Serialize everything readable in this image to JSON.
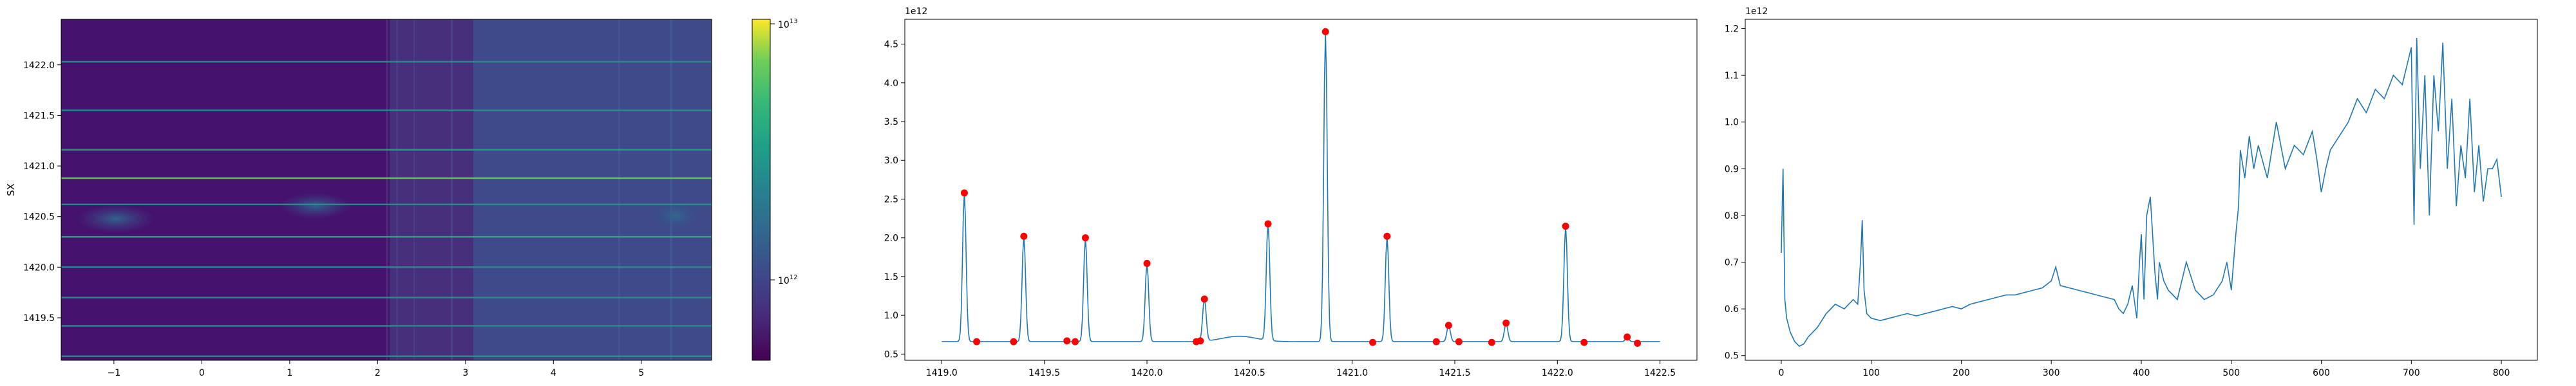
{
  "chart_data": [
    {
      "type": "heatmap",
      "title": "",
      "xlabel": "",
      "ylabel": "SX",
      "xlim": [
        -1.6,
        5.8
      ],
      "ylim": [
        1419.08,
        1422.45
      ],
      "xticks": [
        -1,
        0,
        1,
        2,
        3,
        4,
        5
      ],
      "xtick_labels": [
        "−1",
        "0",
        "1",
        "2",
        "3",
        "4",
        "5"
      ],
      "yticks": [
        1419.5,
        1420.0,
        1420.5,
        1421.0,
        1421.5,
        1422.0
      ],
      "ytick_labels": [
        "1419.5",
        "1420.0",
        "1420.5",
        "1421.0",
        "1421.5",
        "1422.0"
      ],
      "colormap": "viridis",
      "colorbar": {
        "scale": "log",
        "ticks": [
          1000000000000.0,
          10000000000000.0
        ],
        "tick_labels": [
          {
            "base": "10",
            "exp": "12"
          },
          {
            "base": "10",
            "exp": "13"
          }
        ]
      },
      "horizontal_lines": [
        {
          "y": 1422.03,
          "color": "#2a8f8c"
        },
        {
          "y": 1421.55,
          "color": "#2a8f8c"
        },
        {
          "y": 1421.16,
          "color": "#31988a"
        },
        {
          "y": 1420.88,
          "color": "#6ccd5a"
        },
        {
          "y": 1420.62,
          "color": "#2a8f8c"
        },
        {
          "y": 1420.3,
          "color": "#36a583"
        },
        {
          "y": 1420.0,
          "color": "#2a8f8c"
        },
        {
          "y": 1419.7,
          "color": "#2a8f8c"
        },
        {
          "y": 1419.42,
          "color": "#2a8f8c"
        },
        {
          "y": 1419.12,
          "color": "#2a8f8c"
        }
      ],
      "region_boundary_x": 3.08
    },
    {
      "type": "line",
      "title": "",
      "xlabel": "",
      "ylabel": "",
      "y_offset_label": "1e12",
      "xlim": [
        1418.82,
        1422.68
      ],
      "ylim": [
        0.42,
        4.82
      ],
      "xticks": [
        1419.0,
        1419.5,
        1420.0,
        1420.5,
        1421.0,
        1421.5,
        1422.0,
        1422.5
      ],
      "xtick_labels": [
        "1419.0",
        "1419.5",
        "1420.0",
        "1420.5",
        "1421.0",
        "1421.5",
        "1422.0",
        "1422.5"
      ],
      "yticks": [
        0.5,
        1.0,
        1.5,
        2.0,
        2.5,
        3.0,
        3.5,
        4.0,
        4.5
      ],
      "ytick_labels": [
        "0.5",
        "1.0",
        "1.5",
        "2.0",
        "2.5",
        "3.0",
        "3.5",
        "4.0",
        "4.5"
      ],
      "line_color": "#1f77b4",
      "marker_color": "#ff0000",
      "baseline": 0.66,
      "peaks": [
        {
          "x": 1419.11,
          "y": 2.58
        },
        {
          "x": 1419.4,
          "y": 2.02
        },
        {
          "x": 1419.7,
          "y": 2.0
        },
        {
          "x": 1420.0,
          "y": 1.67
        },
        {
          "x": 1420.28,
          "y": 1.21
        },
        {
          "x": 1420.59,
          "y": 2.18
        },
        {
          "x": 1420.87,
          "y": 4.66
        },
        {
          "x": 1421.17,
          "y": 2.02
        },
        {
          "x": 1421.47,
          "y": 0.87
        },
        {
          "x": 1421.75,
          "y": 0.9
        },
        {
          "x": 1422.04,
          "y": 2.15
        },
        {
          "x": 1422.34,
          "y": 0.72
        }
      ],
      "minor_markers": [
        {
          "x": 1419.17,
          "y": 0.66
        },
        {
          "x": 1419.35,
          "y": 0.66
        },
        {
          "x": 1419.61,
          "y": 0.67
        },
        {
          "x": 1419.65,
          "y": 0.66
        },
        {
          "x": 1420.24,
          "y": 0.66
        },
        {
          "x": 1420.26,
          "y": 0.67
        },
        {
          "x": 1421.1,
          "y": 0.65
        },
        {
          "x": 1421.41,
          "y": 0.66
        },
        {
          "x": 1421.52,
          "y": 0.66
        },
        {
          "x": 1421.68,
          "y": 0.65
        },
        {
          "x": 1422.13,
          "y": 0.65
        },
        {
          "x": 1422.39,
          "y": 0.64
        }
      ],
      "x_start": 1419.0,
      "x_end": 1422.5,
      "bump": {
        "center": 1420.45,
        "width": 0.12,
        "height": 0.07
      }
    },
    {
      "type": "line",
      "title": "",
      "xlabel": "",
      "ylabel": "",
      "y_offset_label": "1e12",
      "xlim": [
        -40,
        840
      ],
      "ylim": [
        0.49,
        1.22
      ],
      "xticks": [
        0,
        100,
        200,
        300,
        400,
        500,
        600,
        700,
        800
      ],
      "xtick_labels": [
        "0",
        "100",
        "200",
        "300",
        "400",
        "500",
        "600",
        "700",
        "800"
      ],
      "yticks": [
        0.5,
        0.6,
        0.7,
        0.8,
        0.9,
        1.0,
        1.1,
        1.2
      ],
      "ytick_labels": [
        "0.5",
        "0.6",
        "0.7",
        "0.8",
        "0.9",
        "1.0",
        "1.1",
        "1.2"
      ],
      "line_color": "#1f77b4",
      "series": [
        {
          "x": [
            0,
            2,
            4,
            6,
            10,
            15,
            20,
            25,
            30,
            40,
            50,
            60,
            70,
            80,
            85,
            88,
            90,
            92,
            95,
            100,
            110,
            120,
            130,
            140,
            150,
            160,
            170,
            180,
            190,
            200,
            210,
            220,
            230,
            240,
            250,
            260,
            270,
            280,
            290,
            300,
            305,
            310,
            320,
            330,
            340,
            350,
            360,
            370,
            375,
            380,
            385,
            390,
            395,
            398,
            400,
            403,
            406,
            410,
            415,
            418,
            420,
            425,
            430,
            440,
            450,
            460,
            470,
            480,
            490,
            495,
            500,
            505,
            508,
            510,
            515,
            520,
            525,
            530,
            540,
            550,
            560,
            570,
            580,
            590,
            595,
            600,
            605,
            610,
            620,
            630,
            640,
            650,
            660,
            670,
            680,
            690,
            695,
            700,
            703,
            706,
            710,
            715,
            720,
            725,
            730,
            735,
            740,
            745,
            750,
            755,
            760,
            765,
            770,
            775,
            780,
            785,
            790,
            795,
            800
          ],
          "y": [
            0.72,
            0.9,
            0.62,
            0.58,
            0.55,
            0.53,
            0.52,
            0.525,
            0.54,
            0.56,
            0.59,
            0.61,
            0.6,
            0.62,
            0.61,
            0.7,
            0.79,
            0.64,
            0.59,
            0.58,
            0.575,
            0.58,
            0.585,
            0.59,
            0.585,
            0.59,
            0.595,
            0.6,
            0.605,
            0.6,
            0.61,
            0.615,
            0.62,
            0.625,
            0.63,
            0.63,
            0.635,
            0.64,
            0.645,
            0.66,
            0.69,
            0.65,
            0.645,
            0.64,
            0.635,
            0.63,
            0.625,
            0.62,
            0.6,
            0.59,
            0.61,
            0.65,
            0.58,
            0.7,
            0.76,
            0.62,
            0.8,
            0.84,
            0.68,
            0.62,
            0.7,
            0.66,
            0.64,
            0.62,
            0.7,
            0.64,
            0.62,
            0.63,
            0.66,
            0.7,
            0.64,
            0.76,
            0.82,
            0.94,
            0.88,
            0.97,
            0.9,
            0.95,
            0.88,
            1.0,
            0.9,
            0.95,
            0.93,
            0.98,
            0.92,
            0.85,
            0.9,
            0.94,
            0.97,
            1.0,
            1.05,
            1.02,
            1.07,
            1.05,
            1.1,
            1.08,
            1.12,
            1.16,
            0.78,
            1.18,
            0.9,
            1.1,
            0.8,
            1.1,
            0.98,
            1.17,
            0.9,
            1.05,
            0.82,
            0.95,
            0.88,
            1.05,
            0.85,
            0.95,
            0.83,
            0.9,
            0.9,
            0.92,
            0.84
          ]
        }
      ]
    }
  ]
}
